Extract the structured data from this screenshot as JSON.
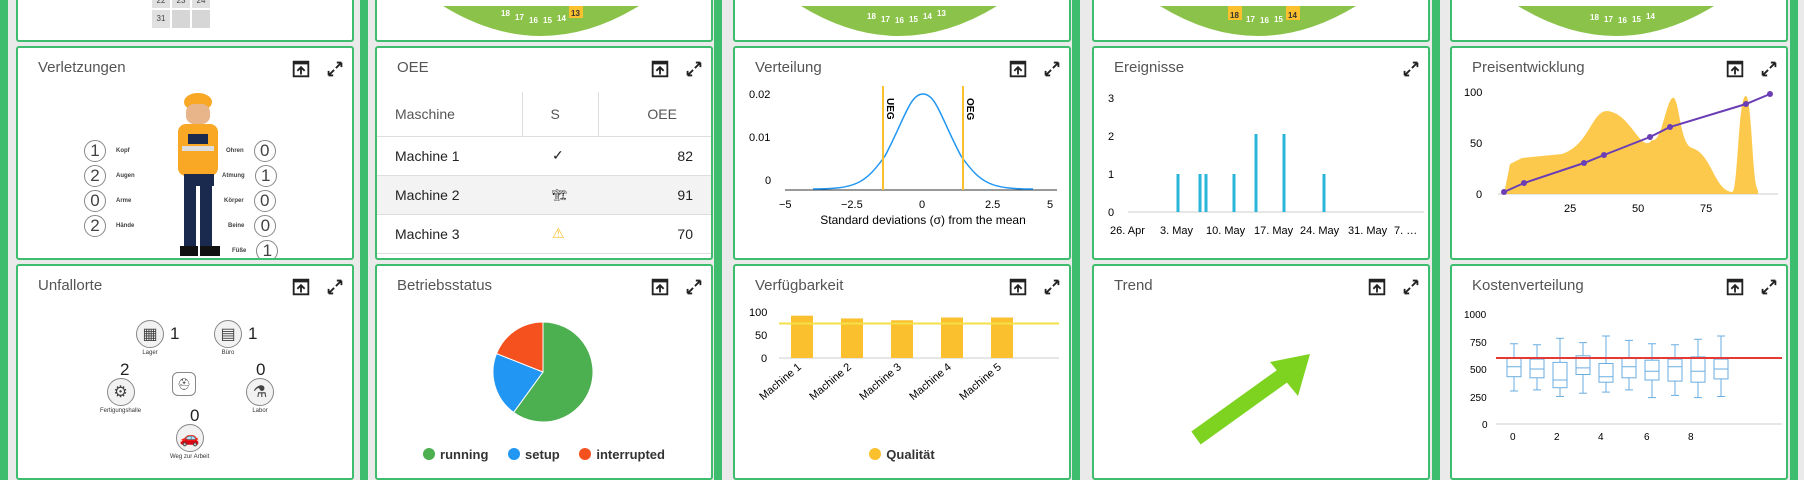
{
  "calendar": {
    "row_a": [
      "22",
      "23",
      "24"
    ],
    "last_day": "31"
  },
  "gauges": [
    {
      "ticks": [
        "18",
        "17",
        "16",
        "15",
        "14",
        "13"
      ]
    },
    {
      "ticks": [
        "18",
        "17",
        "16",
        "15",
        "14",
        "13"
      ]
    },
    {
      "ticks": [
        "18",
        "17",
        "16",
        "15",
        "14"
      ]
    },
    {
      "ticks": [
        "18",
        "17",
        "16",
        "15",
        "14"
      ]
    }
  ],
  "verletzungen": {
    "title": "Verletzungen",
    "parts": [
      {
        "name": "Kopf",
        "count": "1"
      },
      {
        "name": "Augen",
        "count": "2"
      },
      {
        "name": "Arme",
        "count": "0"
      },
      {
        "name": "Hände",
        "count": "2"
      },
      {
        "name": "Ohren",
        "count": "0"
      },
      {
        "name": "Atmung",
        "count": "1"
      },
      {
        "name": "Körper",
        "count": "0"
      },
      {
        "name": "Beine",
        "count": "0"
      },
      {
        "name": "Füße",
        "count": "1"
      }
    ]
  },
  "oee": {
    "title": "OEE",
    "headers": [
      "Maschine",
      "S",
      "OEE"
    ],
    "rows": [
      {
        "machine": "Machine 1",
        "status": "✓",
        "oee": "82"
      },
      {
        "machine": "Machine 2",
        "status": "🏗",
        "oee": "91"
      },
      {
        "machine": "Machine 3",
        "status": "⚠",
        "oee": "70"
      }
    ]
  },
  "verteilung": {
    "title": "Verteilung",
    "ylabels": [
      "0.02",
      "0.01",
      "0"
    ],
    "xlabels": [
      "−5",
      "−2.5",
      "0",
      "2.5",
      "5"
    ],
    "xlabel": "Standard deviations (σ) from the mean",
    "ueg": "UEG",
    "oeg": "OEG"
  },
  "ereignisse": {
    "title": "Ereignisse",
    "ylabels": [
      "3",
      "2",
      "1",
      "0"
    ],
    "xlabels": [
      "26. Apr",
      "3. May",
      "10. May",
      "17. May",
      "24. May",
      "31. May",
      "7. …"
    ]
  },
  "preis": {
    "title": "Preisentwicklung",
    "ylabels": [
      "100",
      "50",
      "0"
    ],
    "xlabels": [
      "25",
      "50",
      "75"
    ]
  },
  "unfallorte": {
    "title": "Unfallorte",
    "places": [
      {
        "name": "Lager",
        "count": "1"
      },
      {
        "name": "Büro",
        "count": "1"
      },
      {
        "name": "Fertigungshalle",
        "count": "2"
      },
      {
        "name": "Labor",
        "count": "0"
      },
      {
        "name": "Weg zur Arbeit",
        "count": "0"
      }
    ]
  },
  "betrieb": {
    "title": "Betriebsstatus",
    "legend": [
      {
        "label": "running",
        "color": "#4caf50"
      },
      {
        "label": "setup",
        "color": "#2196f3"
      },
      {
        "label": "interrupted",
        "color": "#f4511e"
      }
    ]
  },
  "verfuegbarkeit": {
    "title": "Verfügbarkeit",
    "ylabels": [
      "100",
      "50",
      "0"
    ],
    "legend": "Qualität",
    "color": "#fbc02d"
  },
  "trend": {
    "title": "Trend"
  },
  "kosten": {
    "title": "Kostenverteilung",
    "ylabels": [
      "1000",
      "750",
      "500",
      "250",
      "0"
    ],
    "xlabels": [
      "0",
      "2",
      "4",
      "6",
      "8"
    ]
  },
  "chart_data": [
    {
      "type": "bar",
      "categories": [
        "Machine 1",
        "Machine 2",
        "Machine 3",
        "Machine 4",
        "Machine 5"
      ],
      "series": [
        {
          "name": "Qualität",
          "values": [
            92,
            86,
            82,
            88,
            88
          ]
        }
      ],
      "ylim": [
        0,
        100
      ],
      "target": 75
    },
    {
      "type": "pie",
      "labels": [
        "running",
        "setup",
        "interrupted"
      ],
      "values": [
        60,
        21,
        19
      ]
    }
  ]
}
